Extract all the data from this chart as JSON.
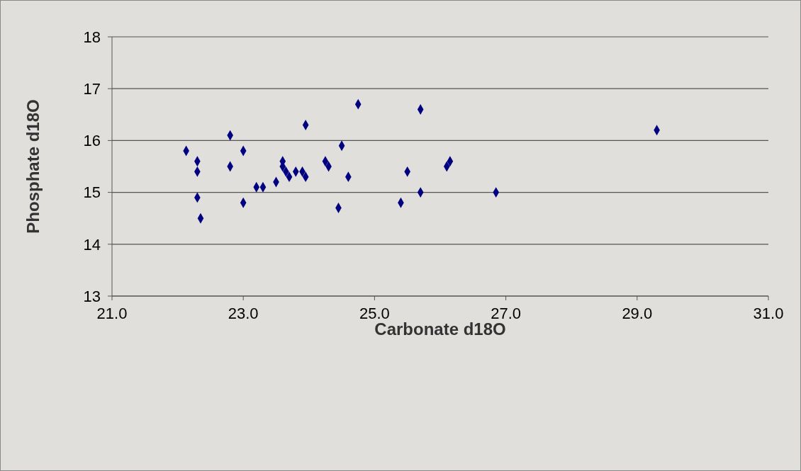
{
  "chart_data": {
    "type": "scatter",
    "xlabel": "Carbonate d18O",
    "ylabel": "Phosphate d18O",
    "x": [
      22.13,
      22.3,
      22.3,
      22.3,
      22.35,
      22.8,
      22.8,
      23.0,
      23.0,
      23.2,
      23.3,
      23.5,
      23.6,
      23.6,
      23.65,
      23.7,
      23.8,
      23.9,
      23.95,
      23.95,
      24.25,
      24.3,
      24.45,
      24.5,
      24.6,
      24.75,
      25.4,
      25.5,
      25.7,
      25.7,
      26.1,
      26.15,
      26.85,
      29.3
    ],
    "values": [
      15.8,
      15.6,
      15.4,
      14.9,
      14.5,
      16.1,
      15.5,
      15.8,
      14.8,
      15.1,
      15.1,
      15.2,
      15.6,
      15.5,
      15.4,
      15.3,
      15.4,
      15.4,
      15.3,
      16.3,
      15.6,
      15.5,
      14.7,
      15.9,
      15.3,
      16.7,
      14.8,
      15.4,
      16.6,
      15.0,
      15.5,
      15.6,
      15.0,
      16.2
    ],
    "color": "#000080",
    "marker": "diamond",
    "grid": "y",
    "legend": false,
    "xlim": [
      21,
      31
    ],
    "xticks": [
      {
        "value": 21,
        "label": "21.0"
      },
      {
        "value": 23,
        "label": "23.0"
      },
      {
        "value": 25,
        "label": "25.0"
      },
      {
        "value": 27,
        "label": "27.0"
      },
      {
        "value": 29,
        "label": "29.0"
      },
      {
        "value": 31,
        "label": "31.0"
      }
    ],
    "ylim": [
      13,
      18
    ],
    "yticks": [
      13,
      14,
      15,
      16,
      17,
      18
    ]
  }
}
